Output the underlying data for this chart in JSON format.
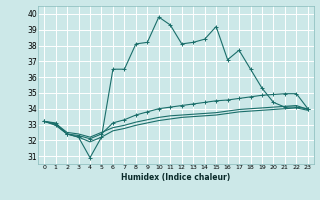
{
  "title": "",
  "xlabel": "Humidex (Indice chaleur)",
  "bg_color": "#cce8e8",
  "grid_color": "#ffffff",
  "line_color": "#1a6e6a",
  "xlim": [
    -0.5,
    23.5
  ],
  "ylim": [
    30.5,
    40.5
  ],
  "xticks": [
    0,
    1,
    2,
    3,
    4,
    5,
    6,
    7,
    8,
    9,
    10,
    11,
    12,
    13,
    14,
    15,
    16,
    17,
    18,
    19,
    20,
    21,
    22,
    23
  ],
  "yticks": [
    31,
    32,
    33,
    34,
    35,
    36,
    37,
    38,
    39,
    40
  ],
  "series1": [
    33.2,
    33.1,
    32.4,
    32.2,
    30.9,
    32.2,
    36.5,
    36.5,
    38.1,
    38.2,
    39.8,
    39.3,
    38.1,
    38.2,
    38.4,
    39.2,
    37.1,
    37.7,
    36.5,
    35.3,
    34.4,
    34.1,
    34.1,
    34.0
  ],
  "series2": [
    33.2,
    33.0,
    32.4,
    32.3,
    32.1,
    32.4,
    33.1,
    33.3,
    33.6,
    33.8,
    34.0,
    34.1,
    34.2,
    34.3,
    34.4,
    34.5,
    34.55,
    34.65,
    34.75,
    34.85,
    34.9,
    34.95,
    34.95,
    34.0
  ],
  "series3": [
    33.2,
    33.05,
    32.5,
    32.4,
    32.2,
    32.5,
    32.8,
    32.95,
    33.15,
    33.3,
    33.45,
    33.55,
    33.6,
    33.65,
    33.7,
    33.75,
    33.85,
    33.95,
    34.0,
    34.05,
    34.1,
    34.15,
    34.2,
    33.95
  ],
  "series4": [
    33.2,
    32.95,
    32.4,
    32.2,
    31.9,
    32.2,
    32.6,
    32.75,
    32.95,
    33.1,
    33.25,
    33.35,
    33.45,
    33.5,
    33.55,
    33.6,
    33.7,
    33.8,
    33.85,
    33.9,
    33.95,
    34.0,
    34.05,
    33.9
  ]
}
